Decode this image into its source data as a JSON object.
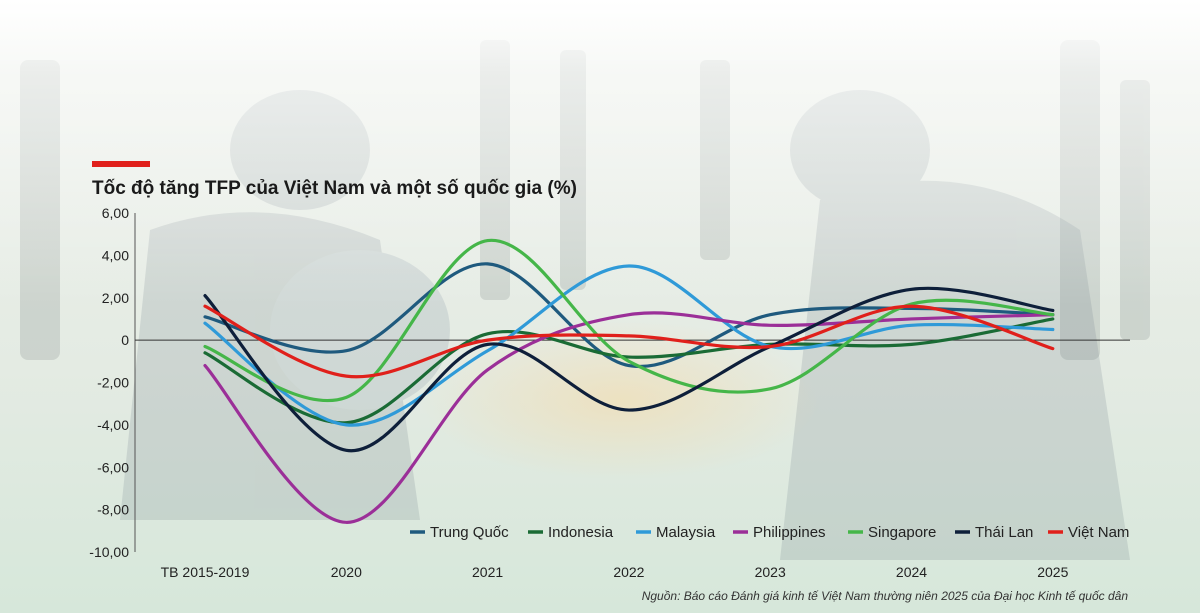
{
  "title": "Tốc độ tăng TFP của Việt Nam và một số quốc gia (%)",
  "source": "Nguồn: Báo cáo Đánh giá kinh tế Việt Nam thường niên 2025 của Đại học Kinh tế quốc dân",
  "colors": {
    "accent": "#e0201b",
    "background_tint": "#dfece3"
  },
  "chart_data": {
    "type": "line",
    "title": "Tốc độ tăng TFP của Việt Nam và một số quốc gia (%)",
    "xlabel": "",
    "ylabel": "",
    "categories": [
      "TB 2015-2019",
      "2020",
      "2021",
      "2022",
      "2023",
      "2024",
      "2025"
    ],
    "ylim": [
      -10,
      6
    ],
    "yticks": [
      "6,00",
      "4,00",
      "2,00",
      "0",
      "-2,00",
      "-4,00",
      "-6,00",
      "-8,00",
      "-10,00"
    ],
    "ytick_values": [
      6,
      4,
      2,
      0,
      -2,
      -4,
      -6,
      -8,
      -10
    ],
    "grid": false,
    "legend_position": "bottom-right",
    "series": [
      {
        "name": "Trung Quốc",
        "color": "#1f5a7e",
        "values": [
          1.1,
          -0.5,
          3.6,
          -1.2,
          1.2,
          1.5,
          1.2
        ]
      },
      {
        "name": "Indonesia",
        "color": "#1a6b35",
        "values": [
          -0.6,
          -3.9,
          0.3,
          -0.8,
          -0.2,
          -0.2,
          1.0
        ]
      },
      {
        "name": "Malaysia",
        "color": "#2f9ad8",
        "values": [
          0.8,
          -4.0,
          -0.5,
          3.5,
          -0.3,
          0.7,
          0.5
        ]
      },
      {
        "name": "Philippines",
        "color": "#9b2f98",
        "values": [
          -1.2,
          -8.6,
          -1.4,
          1.2,
          0.7,
          1.0,
          1.2
        ]
      },
      {
        "name": "Singapore",
        "color": "#45b649",
        "values": [
          -0.3,
          -2.7,
          4.7,
          -1.0,
          -2.3,
          1.7,
          1.2
        ]
      },
      {
        "name": "Thái Lan",
        "color": "#0e1f3a",
        "values": [
          2.1,
          -5.2,
          -0.2,
          -3.3,
          -0.3,
          2.4,
          1.4
        ]
      },
      {
        "name": "Việt Nam",
        "color": "#e0201b",
        "values": [
          1.6,
          -1.7,
          0.0,
          0.2,
          -0.3,
          1.6,
          -0.4
        ]
      }
    ]
  }
}
